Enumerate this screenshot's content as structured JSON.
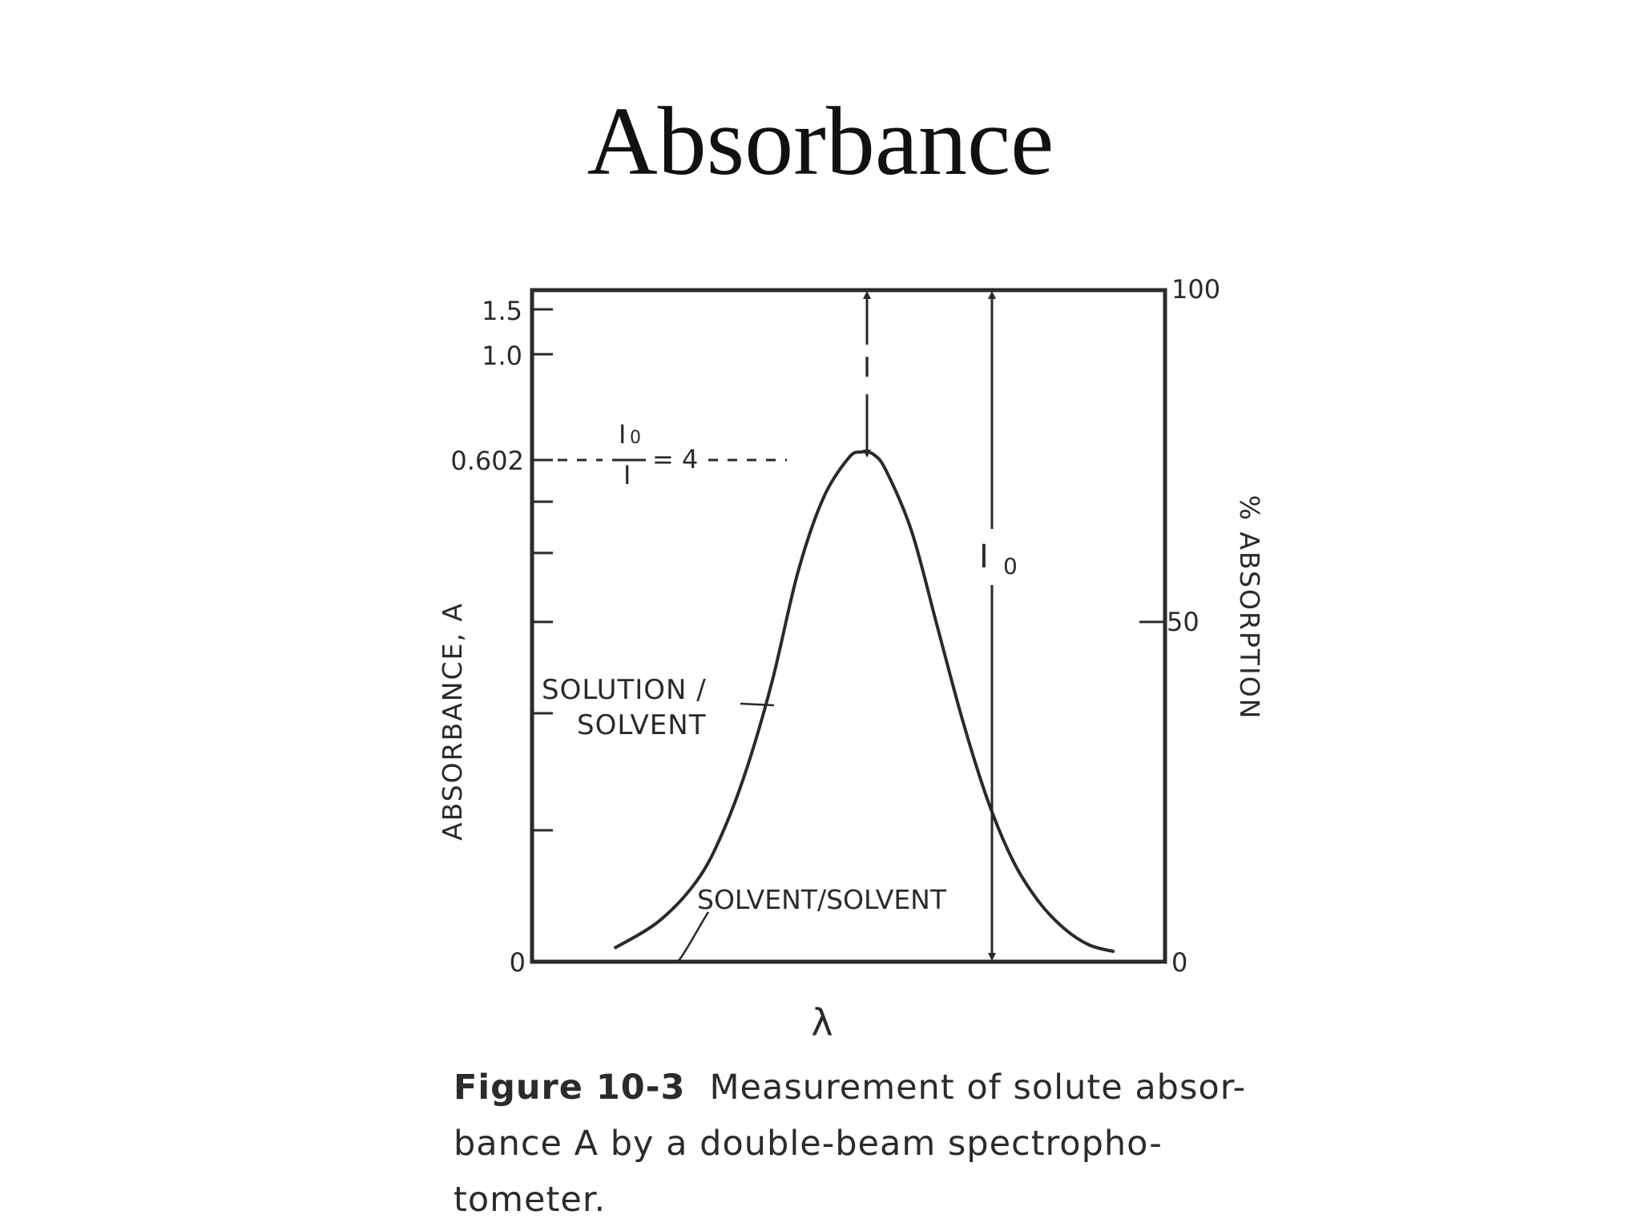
{
  "slide": {
    "title": "Absorbance"
  },
  "caption": {
    "figure_number": "Figure 10-3",
    "line1": "Measurement of solute absor-",
    "line2": "bance A by a double-beam spectropho-",
    "line3": "tometer."
  },
  "chart_data": {
    "type": "line",
    "title": "",
    "xlabel": "λ",
    "ylabel_left": "ABSORBANCE, A",
    "ylabel_right": "% ABSORPTION",
    "left_tick_labels": [
      "0",
      "0.602",
      "1.0",
      "1.5"
    ],
    "right_tick_labels": [
      "0",
      "50",
      "100"
    ],
    "right_ylim": [
      0,
      100
    ],
    "xlim": [
      0,
      1
    ],
    "grid": false,
    "series": [
      {
        "name": "SOLUTION / SOLVENT",
        "x": [
          0.13,
          0.2,
          0.26,
          0.3,
          0.34,
          0.38,
          0.42,
          0.46,
          0.5,
          0.52,
          0.54,
          0.56,
          0.6,
          0.64,
          0.68,
          0.72,
          0.76,
          0.8,
          0.84,
          0.88,
          0.92
        ],
        "y": [
          2,
          6,
          12,
          19,
          29,
          42,
          58,
          69,
          75,
          75.9,
          75.5,
          73,
          64,
          50,
          36,
          24,
          15,
          9,
          5,
          2.5,
          1.5
        ]
      },
      {
        "name": "SOLVENT/SOLVENT",
        "x": [
          0,
          1
        ],
        "y": [
          0,
          0
        ]
      }
    ],
    "annotations": {
      "ratio_numerator": "I",
      "ratio_numerator_sub": "0",
      "ratio_denominator": "I",
      "ratio_value": "= 4",
      "beam_label": "I",
      "reference_label": "I",
      "reference_label_sub": "0",
      "solution_label_line1": "SOLUTION /",
      "solution_label_line2": "SOLVENT",
      "solvent_label": "SOLVENT/SOLVENT"
    }
  }
}
